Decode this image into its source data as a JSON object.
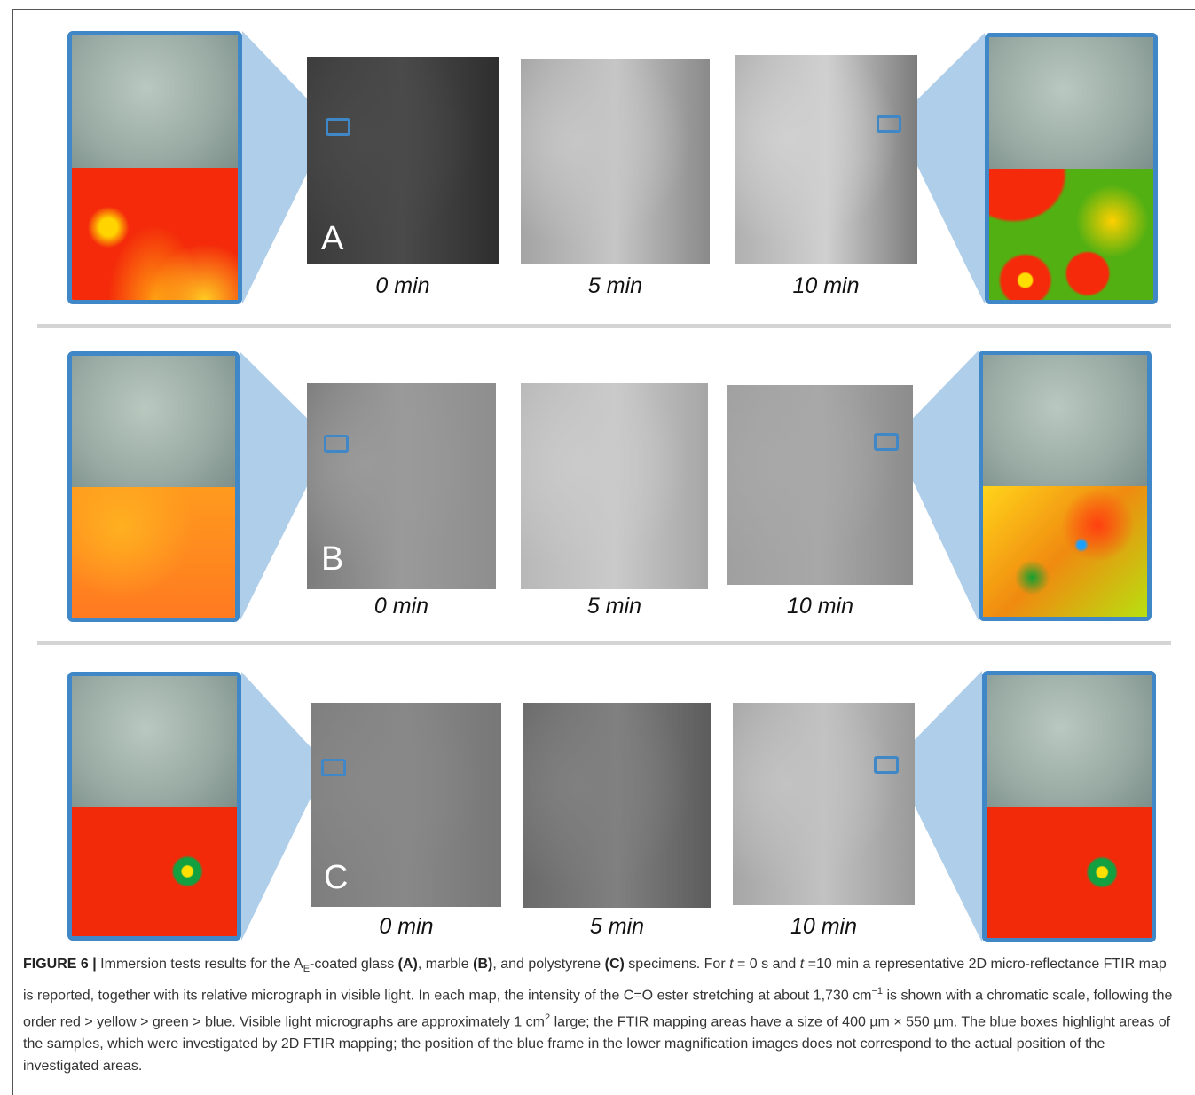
{
  "panels": [
    {
      "label": "A",
      "times": [
        "0 min",
        "5 min",
        "10 min"
      ]
    },
    {
      "label": "B",
      "times": [
        "0 min",
        "5 min",
        "10 min"
      ]
    },
    {
      "label": "C",
      "times": [
        "0 min",
        "5 min",
        "10 min"
      ]
    }
  ],
  "caption": {
    "segments": [
      "FIGURE 6 |",
      " Immersion tests results for the A",
      "E",
      "-coated glass ",
      "(A)",
      ", marble ",
      "(B)",
      ", and polystyrene ",
      "(C)",
      " specimens. For ",
      "t",
      " = 0 s and ",
      "t",
      " =10 min a representative 2D micro-reflectance FTIR map is reported, together with its relative micrograph in visible light. In each map, the intensity of the C=O ester stretching at about 1,730 cm",
      "−1",
      " is shown with a chromatic scale, following the order red > yellow > green > blue. Visible light micrographs are approximately 1 cm",
      "2",
      " large; the FTIR mapping areas have a size of 400 µm × 550 µm. The blue boxes highlight areas of the samples, which were investigated by 2D FTIR mapping; the position of the blue frame in the lower magnification images does not correspond to the actual position of the investigated areas."
    ]
  }
}
